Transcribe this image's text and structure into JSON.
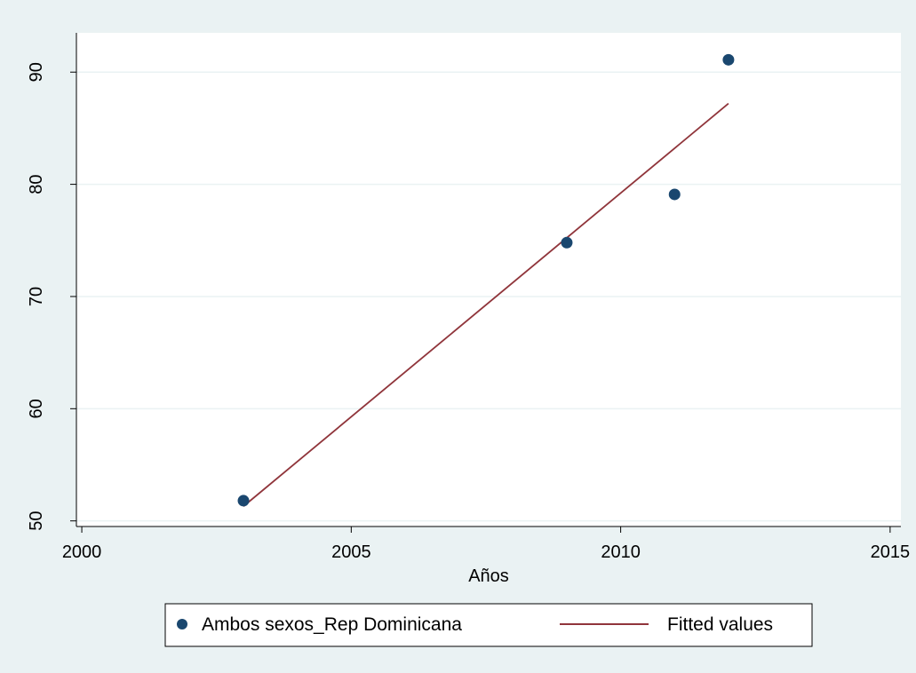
{
  "chart_data": {
    "type": "scatter",
    "xlabel": "Años",
    "ylabel": "",
    "xlim": [
      1999.9,
      2015.2
    ],
    "ylim": [
      49.5,
      93.5
    ],
    "xticks": [
      2000,
      2005,
      2010,
      2015
    ],
    "yticks": [
      50,
      60,
      70,
      80,
      90
    ],
    "grid": "horizontal",
    "legend_position": "bottom",
    "series": [
      {
        "name": "Ambos sexos_Rep Dominicana",
        "kind": "scatter",
        "color": "#1a476f",
        "x": [
          2003,
          2009,
          2011,
          2012
        ],
        "y": [
          51.8,
          74.8,
          79.1,
          91.1
        ]
      },
      {
        "name": "Fitted values",
        "kind": "line",
        "color": "#90353b",
        "x": [
          2003,
          2012
        ],
        "y": [
          51.3,
          87.2
        ]
      }
    ]
  },
  "colors": {
    "page_background": "#eaf2f3",
    "plot_background": "#ffffff",
    "gridline": "#eaf2f3",
    "axis": "#000000"
  }
}
